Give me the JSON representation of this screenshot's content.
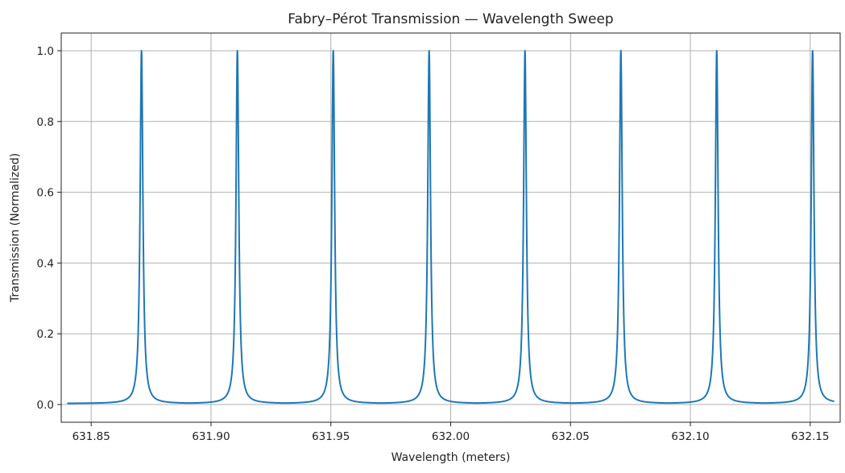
{
  "chart_data": {
    "type": "line",
    "title": "Fabry–Pérot Transmission — Wavelength Sweep",
    "xlabel": "Wavelength (meters)",
    "ylabel": "Transmission (Normalized)",
    "xlim": [
      631.8375,
      632.1625
    ],
    "ylim": [
      -0.05,
      1.05
    ],
    "xticks": [
      631.85,
      631.9,
      631.95,
      632.0,
      632.05,
      632.1,
      632.15
    ],
    "xtick_labels": [
      "631.85",
      "631.90",
      "631.95",
      "632.00",
      "632.05",
      "632.10",
      "632.15"
    ],
    "yticks": [
      0.0,
      0.2,
      0.4,
      0.6,
      0.8,
      1.0
    ],
    "ytick_labels": [
      "0.0",
      "0.2",
      "0.4",
      "0.6",
      "0.8",
      "1.0"
    ],
    "grid": true,
    "series": [
      {
        "color": "#1f77b4",
        "x_range": [
          631.84,
          632.16
        ],
        "peak_x": [
          631.871,
          631.911,
          631.951,
          631.991,
          632.031,
          632.071,
          632.111,
          632.151
        ],
        "peak_value": 1.0,
        "baseline_value": 0.003,
        "x": [
          631.84,
          631.85,
          631.86,
          631.865,
          631.868,
          631.87,
          631.871,
          631.872,
          631.874,
          631.877,
          631.882,
          631.891,
          631.9,
          631.905,
          631.908,
          631.91,
          631.911,
          631.912,
          631.914,
          631.917,
          631.922,
          631.931,
          631.94,
          631.945,
          631.948,
          631.95,
          631.951,
          631.952,
          631.954,
          631.957,
          631.962,
          631.971,
          631.98,
          631.985,
          631.988,
          631.99,
          631.991,
          631.992,
          631.994,
          631.997,
          632.002,
          632.011,
          632.02,
          632.025,
          632.028,
          632.03,
          632.031,
          632.032,
          632.034,
          632.037,
          632.042,
          632.051,
          632.06,
          632.065,
          632.068,
          632.07,
          632.071,
          632.072,
          632.074,
          632.077,
          632.082,
          632.091,
          632.1,
          632.105,
          632.108,
          632.11,
          632.111,
          632.112,
          632.114,
          632.117,
          632.122,
          632.131,
          632.14,
          632.145,
          632.148,
          632.15,
          632.151,
          632.152,
          632.154,
          632.157,
          632.16
        ],
        "y": [
          0.008,
          0.004,
          0.01,
          0.02,
          0.05,
          0.2,
          1.0,
          0.2,
          0.05,
          0.02,
          0.008,
          0.003,
          0.008,
          0.02,
          0.05,
          0.2,
          1.0,
          0.2,
          0.05,
          0.02,
          0.008,
          0.003,
          0.008,
          0.02,
          0.05,
          0.2,
          1.0,
          0.2,
          0.05,
          0.02,
          0.008,
          0.003,
          0.008,
          0.02,
          0.05,
          0.2,
          1.0,
          0.2,
          0.05,
          0.02,
          0.008,
          0.003,
          0.008,
          0.02,
          0.05,
          0.2,
          1.0,
          0.2,
          0.05,
          0.02,
          0.008,
          0.003,
          0.008,
          0.02,
          0.05,
          0.2,
          1.0,
          0.2,
          0.05,
          0.02,
          0.008,
          0.003,
          0.008,
          0.02,
          0.05,
          0.2,
          1.0,
          0.2,
          0.05,
          0.02,
          0.008,
          0.003,
          0.008,
          0.02,
          0.05,
          0.2,
          1.0,
          0.2,
          0.05,
          0.02,
          0.008
        ]
      }
    ]
  }
}
